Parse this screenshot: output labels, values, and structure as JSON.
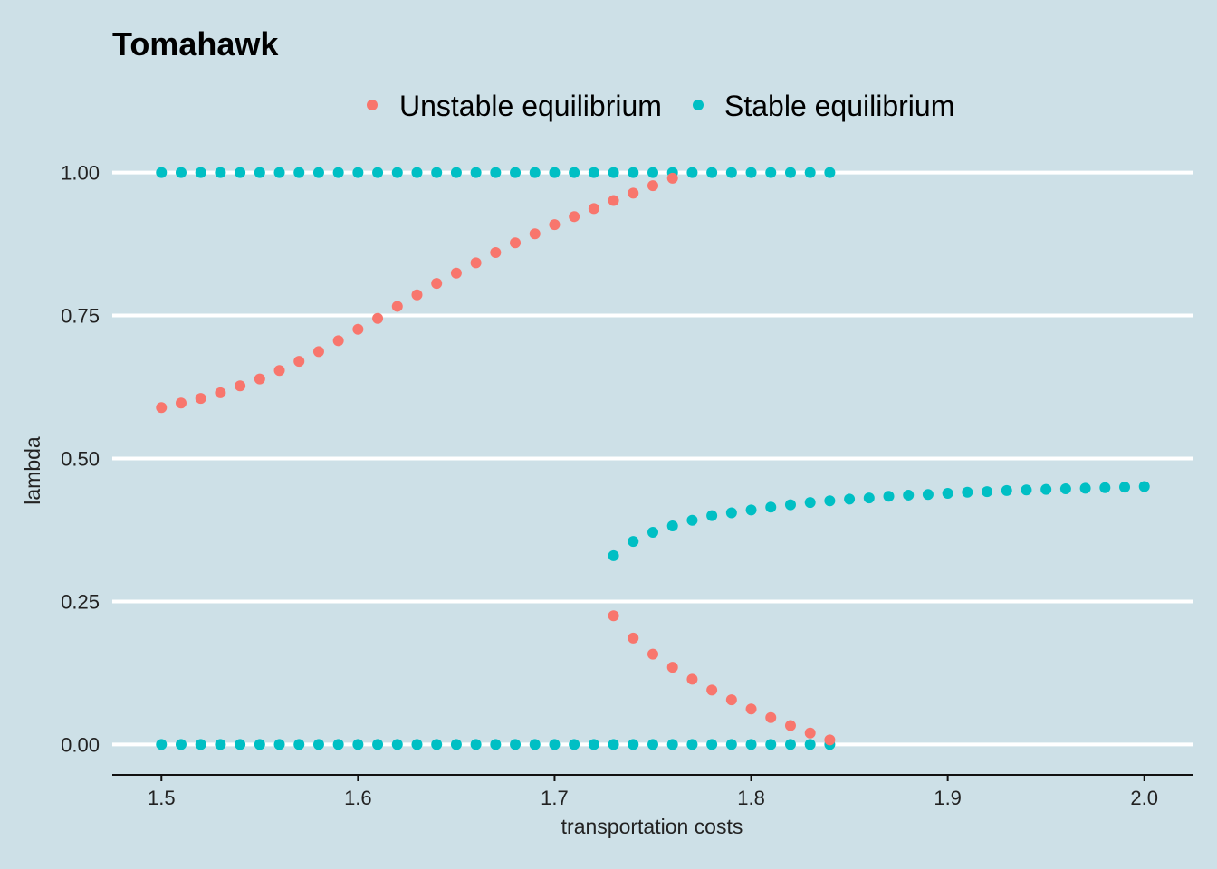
{
  "chart_data": {
    "type": "scatter",
    "title": "Tomahawk",
    "xlabel": "transportation costs",
    "ylabel": "lambda",
    "xlim": [
      1.475,
      2.025
    ],
    "ylim": [
      -0.05,
      1.05
    ],
    "x_ticks": [
      "1.5",
      "1.6",
      "1.7",
      "1.8",
      "1.9",
      "2.0"
    ],
    "y_ticks": [
      "0.00",
      "0.25",
      "0.50",
      "0.75",
      "1.00"
    ],
    "grid": "horizontal",
    "legend_position": "top",
    "series": [
      {
        "name": "Unstable equilibrium",
        "color": "#f8766d",
        "points": [
          [
            1.5,
            0.589
          ],
          [
            1.51,
            0.597
          ],
          [
            1.52,
            0.605
          ],
          [
            1.53,
            0.615
          ],
          [
            1.54,
            0.627
          ],
          [
            1.55,
            0.639
          ],
          [
            1.56,
            0.654
          ],
          [
            1.57,
            0.67
          ],
          [
            1.58,
            0.687
          ],
          [
            1.59,
            0.706
          ],
          [
            1.6,
            0.726
          ],
          [
            1.61,
            0.745
          ],
          [
            1.62,
            0.766
          ],
          [
            1.63,
            0.786
          ],
          [
            1.64,
            0.806
          ],
          [
            1.65,
            0.824
          ],
          [
            1.66,
            0.842
          ],
          [
            1.67,
            0.86
          ],
          [
            1.68,
            0.877
          ],
          [
            1.69,
            0.893
          ],
          [
            1.7,
            0.909
          ],
          [
            1.71,
            0.923
          ],
          [
            1.72,
            0.937
          ],
          [
            1.73,
            0.951
          ],
          [
            1.74,
            0.964
          ],
          [
            1.75,
            0.977
          ],
          [
            1.76,
            0.99
          ],
          [
            1.73,
            0.225
          ],
          [
            1.74,
            0.186
          ],
          [
            1.75,
            0.158
          ],
          [
            1.76,
            0.135
          ],
          [
            1.77,
            0.114
          ],
          [
            1.78,
            0.095
          ],
          [
            1.79,
            0.078
          ],
          [
            1.8,
            0.062
          ],
          [
            1.81,
            0.047
          ],
          [
            1.82,
            0.033
          ],
          [
            1.83,
            0.02
          ],
          [
            1.84,
            0.008
          ]
        ]
      },
      {
        "name": "Stable equilibrium",
        "color": "#00bfc4",
        "points": [
          [
            1.5,
            1.0
          ],
          [
            1.51,
            1.0
          ],
          [
            1.52,
            1.0
          ],
          [
            1.53,
            1.0
          ],
          [
            1.54,
            1.0
          ],
          [
            1.55,
            1.0
          ],
          [
            1.56,
            1.0
          ],
          [
            1.57,
            1.0
          ],
          [
            1.58,
            1.0
          ],
          [
            1.59,
            1.0
          ],
          [
            1.6,
            1.0
          ],
          [
            1.61,
            1.0
          ],
          [
            1.62,
            1.0
          ],
          [
            1.63,
            1.0
          ],
          [
            1.64,
            1.0
          ],
          [
            1.65,
            1.0
          ],
          [
            1.66,
            1.0
          ],
          [
            1.67,
            1.0
          ],
          [
            1.68,
            1.0
          ],
          [
            1.69,
            1.0
          ],
          [
            1.7,
            1.0
          ],
          [
            1.71,
            1.0
          ],
          [
            1.72,
            1.0
          ],
          [
            1.73,
            1.0
          ],
          [
            1.74,
            1.0
          ],
          [
            1.75,
            1.0
          ],
          [
            1.76,
            1.0
          ],
          [
            1.77,
            1.0
          ],
          [
            1.78,
            1.0
          ],
          [
            1.79,
            1.0
          ],
          [
            1.8,
            1.0
          ],
          [
            1.81,
            1.0
          ],
          [
            1.82,
            1.0
          ],
          [
            1.83,
            1.0
          ],
          [
            1.84,
            1.0
          ],
          [
            1.5,
            0.0
          ],
          [
            1.51,
            0.0
          ],
          [
            1.52,
            0.0
          ],
          [
            1.53,
            0.0
          ],
          [
            1.54,
            0.0
          ],
          [
            1.55,
            0.0
          ],
          [
            1.56,
            0.0
          ],
          [
            1.57,
            0.0
          ],
          [
            1.58,
            0.0
          ],
          [
            1.59,
            0.0
          ],
          [
            1.6,
            0.0
          ],
          [
            1.61,
            0.0
          ],
          [
            1.62,
            0.0
          ],
          [
            1.63,
            0.0
          ],
          [
            1.64,
            0.0
          ],
          [
            1.65,
            0.0
          ],
          [
            1.66,
            0.0
          ],
          [
            1.67,
            0.0
          ],
          [
            1.68,
            0.0
          ],
          [
            1.69,
            0.0
          ],
          [
            1.7,
            0.0
          ],
          [
            1.71,
            0.0
          ],
          [
            1.72,
            0.0
          ],
          [
            1.73,
            0.0
          ],
          [
            1.74,
            0.0
          ],
          [
            1.75,
            0.0
          ],
          [
            1.76,
            0.0
          ],
          [
            1.77,
            0.0
          ],
          [
            1.78,
            0.0
          ],
          [
            1.79,
            0.0
          ],
          [
            1.8,
            0.0
          ],
          [
            1.81,
            0.0
          ],
          [
            1.82,
            0.0
          ],
          [
            1.83,
            0.0
          ],
          [
            1.84,
            0.0
          ],
          [
            1.73,
            0.33
          ],
          [
            1.74,
            0.355
          ],
          [
            1.75,
            0.371
          ],
          [
            1.76,
            0.382
          ],
          [
            1.77,
            0.392
          ],
          [
            1.78,
            0.4
          ],
          [
            1.79,
            0.405
          ],
          [
            1.8,
            0.41
          ],
          [
            1.81,
            0.415
          ],
          [
            1.82,
            0.419
          ],
          [
            1.83,
            0.423
          ],
          [
            1.84,
            0.426
          ],
          [
            1.85,
            0.429
          ],
          [
            1.86,
            0.431
          ],
          [
            1.87,
            0.434
          ],
          [
            1.88,
            0.436
          ],
          [
            1.89,
            0.437
          ],
          [
            1.9,
            0.439
          ],
          [
            1.91,
            0.441
          ],
          [
            1.92,
            0.442
          ],
          [
            1.93,
            0.444
          ],
          [
            1.94,
            0.445
          ],
          [
            1.95,
            0.446
          ],
          [
            1.96,
            0.447
          ],
          [
            1.97,
            0.448
          ],
          [
            1.98,
            0.449
          ],
          [
            1.99,
            0.45
          ],
          [
            2.0,
            0.451
          ]
        ]
      }
    ]
  }
}
